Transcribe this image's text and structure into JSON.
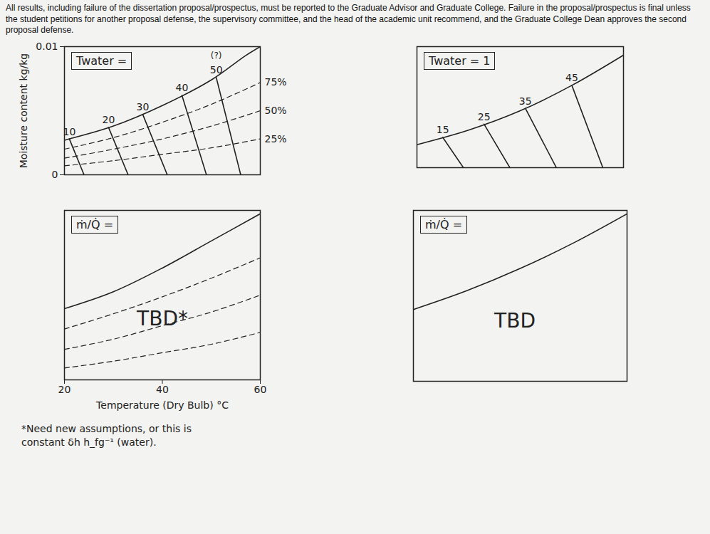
{
  "header_text": "All results, including failure of the dissertation proposal/prospectus, must be reported to the Graduate Advisor and Graduate College. Failure in the proposal/prospectus is final unless the student petitions for another proposal defense, the supervisory committee, and the head of the academic unit recommend, and the Graduate College Dean approves the second proposal defense.",
  "chart_data": [
    {
      "type": "line",
      "title": "Twater =",
      "color": "#222222",
      "y_label": "Moisture content kg/kg",
      "xlim": [
        20,
        60
      ],
      "ylim": [
        0,
        0.01
      ],
      "yticks": [
        0,
        0.01
      ],
      "tick_labels": "y",
      "series": [
        {
          "values": [
            [
              20,
              0.0027
            ],
            [
              30,
              0.0038
            ],
            [
              40,
              0.0054
            ],
            [
              50,
              0.0074
            ],
            [
              57,
              0.0093
            ],
            [
              60,
              0.01
            ]
          ],
          "line_style": "solid"
        },
        {
          "name": "10",
          "values": [
            [
              21,
              0.0028
            ],
            [
              24,
              0
            ]
          ],
          "line_style": "solid"
        },
        {
          "name": "20",
          "values": [
            [
              29,
              0.0037
            ],
            [
              33,
              0
            ]
          ],
          "line_style": "solid"
        },
        {
          "name": "30",
          "values": [
            [
              36,
              0.0047
            ],
            [
              41,
              0
            ]
          ],
          "line_style": "solid"
        },
        {
          "name": "40",
          "values": [
            [
              44,
              0.0062
            ],
            [
              49,
              0
            ]
          ],
          "line_style": "solid"
        },
        {
          "name": "50",
          "values": [
            [
              51,
              0.0076
            ],
            [
              56,
              0
            ]
          ],
          "line_style": "solid"
        },
        {
          "name": "75%",
          "values": [
            [
              20,
              0.002
            ],
            [
              30,
              0.0029
            ],
            [
              40,
              0.0041
            ],
            [
              50,
              0.0055
            ],
            [
              60,
              0.0072
            ]
          ],
          "line_style": "dashed"
        },
        {
          "name": "50%",
          "values": [
            [
              20,
              0.0013
            ],
            [
              30,
              0.002
            ],
            [
              40,
              0.0028
            ],
            [
              50,
              0.0038
            ],
            [
              60,
              0.005
            ]
          ],
          "line_style": "dashed"
        },
        {
          "name": "25%",
          "values": [
            [
              20,
              0.0007
            ],
            [
              30,
              0.0011
            ],
            [
              40,
              0.0016
            ],
            [
              50,
              0.0021
            ],
            [
              60,
              0.0028
            ]
          ],
          "line_style": "dashed"
        }
      ],
      "annotations": [
        {
          "text": "(?)",
          "x": 51,
          "y": 0.0093
        }
      ]
    },
    {
      "type": "line",
      "title": "Twater = 1",
      "color": "#222222",
      "xlim": [
        20,
        60
      ],
      "ylim": [
        0,
        0.01
      ],
      "tick_labels": false,
      "series": [
        {
          "values": [
            [
              20,
              0.0019
            ],
            [
              30,
              0.0031
            ],
            [
              40,
              0.0047
            ],
            [
              50,
              0.0068
            ],
            [
              60,
              0.0093
            ]
          ],
          "line_style": "solid"
        },
        {
          "name": "15",
          "values": [
            [
              25,
              0.0025
            ],
            [
              29,
              0
            ]
          ],
          "line_style": "solid"
        },
        {
          "name": "25",
          "values": [
            [
              33,
              0.0036
            ],
            [
              38,
              0
            ]
          ],
          "line_style": "solid"
        },
        {
          "name": "35",
          "values": [
            [
              41,
              0.0049
            ],
            [
              47,
              0
            ]
          ],
          "line_style": "solid"
        },
        {
          "name": "45",
          "values": [
            [
              50,
              0.0068
            ],
            [
              56,
              0
            ]
          ],
          "line_style": "solid"
        }
      ]
    },
    {
      "type": "line",
      "title": "ṁ/Q̇ =",
      "color": "#222222",
      "x_label": "Temperature (Dry Bulb) °C",
      "xlim": [
        20,
        60
      ],
      "ylim": [
        0,
        0.01
      ],
      "xticks": [
        20,
        40,
        60
      ],
      "tick_labels": "x",
      "caption": "*Need new assumptions, or this is constant δh h_fg⁻¹ (water).",
      "series": [
        {
          "values": [
            [
              20,
              0.0042
            ],
            [
              30,
              0.0052
            ],
            [
              40,
              0.0066
            ],
            [
              50,
              0.0082
            ],
            [
              60,
              0.0098
            ]
          ],
          "line_style": "solid"
        },
        {
          "values": [
            [
              20,
              0.003
            ],
            [
              30,
              0.0039
            ],
            [
              40,
              0.0049
            ],
            [
              50,
              0.006
            ],
            [
              60,
              0.0072
            ]
          ],
          "line_style": "dashed"
        },
        {
          "values": [
            [
              20,
              0.0018
            ],
            [
              30,
              0.0024
            ],
            [
              40,
              0.0032
            ],
            [
              50,
              0.004
            ],
            [
              60,
              0.005
            ]
          ],
          "line_style": "dashed"
        },
        {
          "values": [
            [
              20,
              0.0007
            ],
            [
              30,
              0.0011
            ],
            [
              40,
              0.0016
            ],
            [
              50,
              0.0021
            ],
            [
              60,
              0.0028
            ]
          ],
          "line_style": "dashed"
        }
      ],
      "annotations": [
        {
          "text": "TBD*",
          "x": 40,
          "y": 0.0036
        }
      ]
    },
    {
      "type": "line",
      "title": "ṁ/Q̇ =",
      "color": "#222222",
      "xlim": [
        20,
        60
      ],
      "ylim": [
        0,
        0.01
      ],
      "tick_labels": false,
      "series": [
        {
          "values": [
            [
              20,
              0.0042
            ],
            [
              30,
              0.0053
            ],
            [
              40,
              0.0066
            ],
            [
              50,
              0.0081
            ],
            [
              60,
              0.0098
            ]
          ],
          "line_style": "solid"
        }
      ],
      "annotations": [
        {
          "text": "TBD",
          "x": 39,
          "y": 0.0035
        }
      ]
    }
  ]
}
